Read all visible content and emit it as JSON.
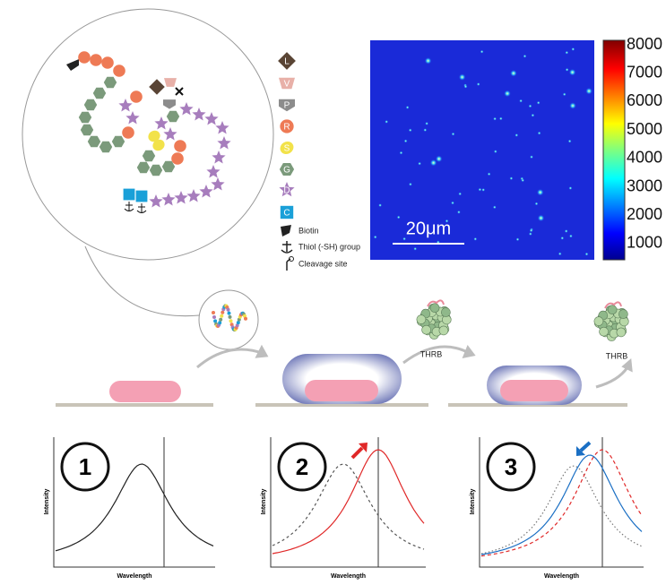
{
  "chain_legend": {
    "residues": [
      "L",
      "V",
      "P",
      "R",
      "S",
      "G",
      "D",
      "C"
    ],
    "markers": [
      "Biotin",
      "Thiol (-SH) group",
      "Cleavage site"
    ]
  },
  "microscopy": {
    "scale_bar": "20μm",
    "colorbar_labels": [
      8000,
      7000,
      6000,
      5000,
      4000,
      3000,
      2000,
      1000
    ]
  },
  "stages": {
    "protein_labels": [
      "THRB",
      "THRB"
    ]
  },
  "plots": [
    {
      "number": 1,
      "y_label": "Intensity",
      "x_label": "Wavelength"
    },
    {
      "number": 2,
      "y_label": "Intensity",
      "x_label": "Wavelength"
    },
    {
      "number": 3,
      "y_label": "Intensity",
      "x_label": "Wavelength"
    }
  ]
}
